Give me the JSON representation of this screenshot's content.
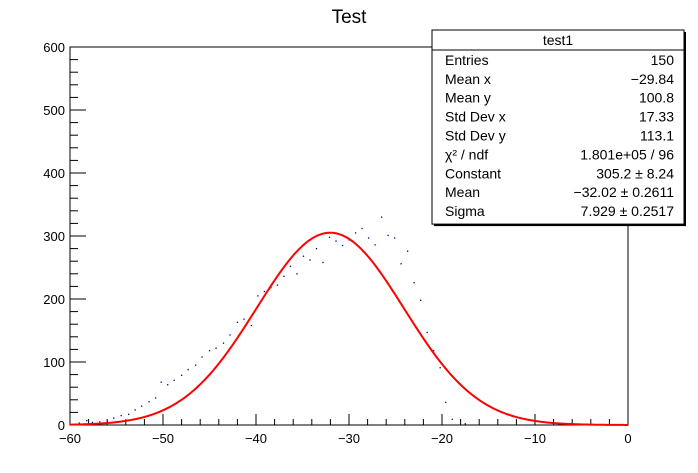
{
  "chart_data": {
    "type": "scatter",
    "title": "Test",
    "xlabel": "",
    "ylabel": "",
    "xlim": [
      -60,
      0
    ],
    "ylim": [
      0,
      600
    ],
    "x_ticks": [
      -60,
      -50,
      -40,
      -30,
      -20,
      -10,
      0
    ],
    "x_tick_labels": [
      "−60",
      "−50",
      "−40",
      "−30",
      "−20",
      "−10",
      "0"
    ],
    "y_ticks": [
      0,
      100,
      200,
      300,
      400,
      500,
      600
    ],
    "y_tick_labels": [
      "0",
      "100",
      "200",
      "300",
      "400",
      "500",
      "600"
    ],
    "grid": false,
    "points": [
      [
        -59.0,
        3
      ],
      [
        -58.2,
        7
      ],
      [
        -57.6,
        4
      ],
      [
        -56.8,
        5
      ],
      [
        -56.0,
        6
      ],
      [
        -55.3,
        11
      ],
      [
        -54.5,
        15
      ],
      [
        -53.7,
        17
      ],
      [
        -53.0,
        24
      ],
      [
        -52.3,
        30
      ],
      [
        -51.5,
        37
      ],
      [
        -50.8,
        43
      ],
      [
        -50.2,
        68
      ],
      [
        -49.5,
        64
      ],
      [
        -48.8,
        71
      ],
      [
        -48.0,
        79
      ],
      [
        -47.3,
        88
      ],
      [
        -46.5,
        95
      ],
      [
        -45.8,
        108
      ],
      [
        -45.0,
        118
      ],
      [
        -44.3,
        122
      ],
      [
        -43.5,
        130
      ],
      [
        -42.8,
        143
      ],
      [
        -42.0,
        163
      ],
      [
        -41.3,
        168
      ],
      [
        -40.5,
        158
      ],
      [
        -39.8,
        205
      ],
      [
        -39.1,
        212
      ],
      [
        -38.4,
        218
      ],
      [
        -37.7,
        222
      ],
      [
        -37.0,
        236
      ],
      [
        -36.3,
        252
      ],
      [
        -35.6,
        240
      ],
      [
        -34.9,
        268
      ],
      [
        -34.2,
        262
      ],
      [
        -33.5,
        280
      ],
      [
        -32.8,
        258
      ],
      [
        -32.1,
        298
      ],
      [
        -31.4,
        292
      ],
      [
        -30.7,
        285
      ],
      [
        -30.0,
        294
      ],
      [
        -29.3,
        305
      ],
      [
        -28.6,
        312
      ],
      [
        -27.9,
        297
      ],
      [
        -27.2,
        286
      ],
      [
        -26.5,
        330
      ],
      [
        -25.8,
        301
      ],
      [
        -25.1,
        297
      ],
      [
        -24.4,
        256
      ],
      [
        -23.7,
        276
      ],
      [
        -23.0,
        226
      ],
      [
        -22.3,
        198
      ],
      [
        -21.6,
        147
      ],
      [
        -20.9,
        118
      ],
      [
        -20.2,
        91
      ],
      [
        -19.6,
        36
      ],
      [
        -18.9,
        9
      ],
      [
        -17.5,
        2
      ]
    ],
    "fit_curve": {
      "type": "gaussian",
      "constant": 305.2,
      "mean": -32.02,
      "sigma": 7.929,
      "color": "#ff0000"
    },
    "marker_color": "#000080",
    "legend_placement": "top-right"
  },
  "stats_box": {
    "title": "test1",
    "rows": [
      {
        "label": "Entries",
        "value": "150"
      },
      {
        "label": "Mean x",
        "value": "−29.84"
      },
      {
        "label": "Mean y",
        "value": "100.8"
      },
      {
        "label": "Std Dev x",
        "value": "17.33"
      },
      {
        "label": "Std Dev y",
        "value": "113.1"
      },
      {
        "label": "χ² / ndf",
        "value": "1.801e+05 / 96"
      },
      {
        "label": "Constant",
        "value": "305.2 ±  8.24"
      },
      {
        "label": "Mean",
        "value": "−32.02 ± 0.2611"
      },
      {
        "label": "Sigma",
        "value": "7.929 ± 0.2517"
      }
    ]
  }
}
